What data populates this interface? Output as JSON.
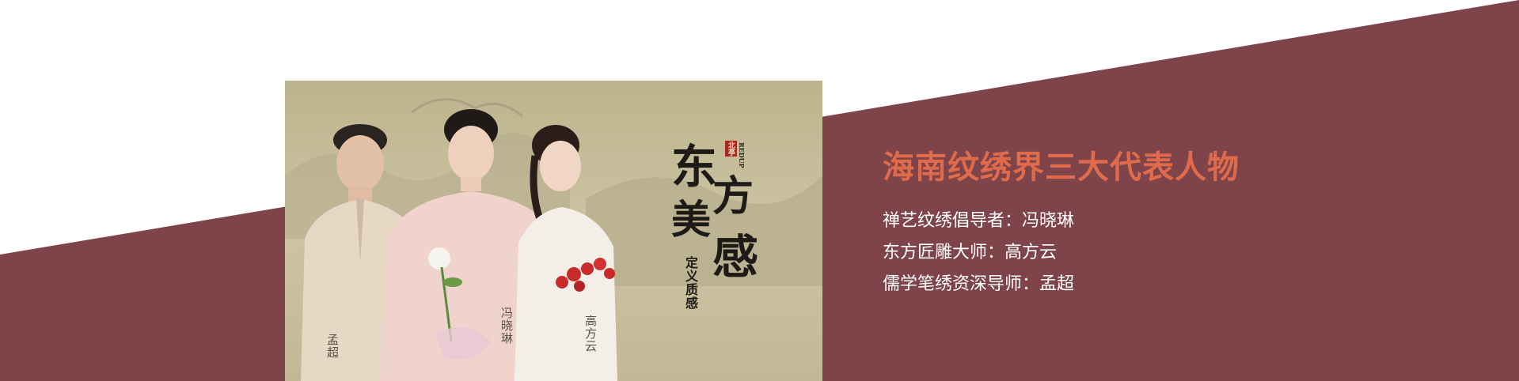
{
  "colors": {
    "band": "#7e4449",
    "title": "#e06a4c",
    "text": "#ffffff",
    "poster_bg": "#c9bf9c"
  },
  "poster": {
    "logo_small": "北亭",
    "brand": "REDUP",
    "calligraphy": [
      "东",
      "方",
      "美",
      "感"
    ],
    "subtitle": "定义质感",
    "people": [
      "孟超",
      "冯晓琳",
      "高方云"
    ]
  },
  "info": {
    "title": "海南纹绣界三大代表人物",
    "lines": [
      "禅艺纹绣倡导者：冯晓琳",
      "东方匠雕大师：高方云",
      "儒学笔绣资深导师：孟超"
    ]
  }
}
